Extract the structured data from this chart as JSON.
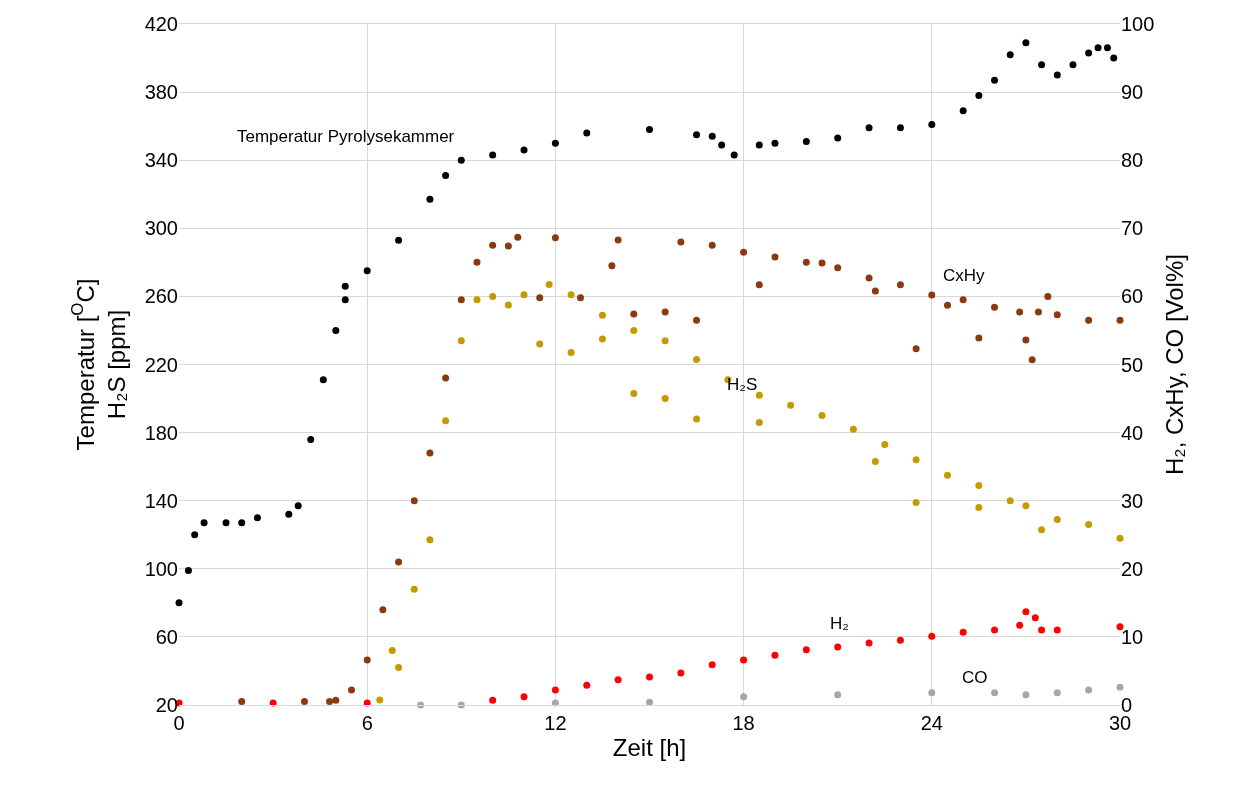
{
  "chart_data": {
    "type": "scatter",
    "xlabel": "Zeit [h]",
    "ylabel": "Temperatur [$^{O}$C]\nH₂S [ppm]",
    "y2label": "H₂, CxHy, CO [Vol%]",
    "xlim": [
      0,
      30
    ],
    "xticks": [
      0,
      6,
      12,
      18,
      24,
      30
    ],
    "ylim": [
      20,
      420
    ],
    "yticks": [
      20,
      60,
      100,
      140,
      180,
      220,
      260,
      300,
      340,
      380,
      420
    ],
    "y2lim": [
      0,
      100
    ],
    "y2ticks": [
      0,
      10,
      20,
      30,
      40,
      50,
      60,
      70,
      80,
      90,
      100
    ],
    "grid": true,
    "legend": false,
    "marker": "circle",
    "series": [
      {
        "name": "Temperatur Pyrolysekammer",
        "color": "#000000",
        "x": [
          0,
          0.3,
          0.5,
          0.8,
          1.5,
          2,
          2.5,
          3.5,
          3.8,
          4.2,
          4.6,
          5,
          5.3,
          5.3,
          6,
          7,
          8,
          8.5,
          9,
          10,
          11,
          12,
          13,
          15,
          16.5,
          17,
          17.3,
          17.7,
          18.5,
          19,
          20,
          21,
          22,
          23,
          24,
          25,
          25.5,
          26,
          26.5,
          27,
          27.5,
          28,
          28.5,
          29,
          29.3,
          29.6,
          29.8
        ],
        "values": [
          80,
          99,
          120,
          127,
          127,
          127,
          130,
          132,
          137,
          176,
          211,
          240,
          258,
          266,
          275,
          293,
          317,
          331,
          340,
          343,
          346,
          350,
          356,
          358,
          355,
          354,
          349,
          343,
          349,
          350,
          351,
          353,
          359,
          359,
          361,
          369,
          378,
          387,
          402,
          409,
          396,
          390,
          396,
          403,
          406,
          406,
          400
        ]
      },
      {
        "name": "H₂S",
        "color": "#c49a00",
        "x": [
          6.4,
          6.8,
          7,
          7.5,
          8,
          8.5,
          9,
          9.5,
          10,
          10.5,
          11,
          11.5,
          11.8,
          12.5,
          12.5,
          13.5,
          13.5,
          14.5,
          14.5,
          15.5,
          15.5,
          16.5,
          16.5,
          17.5,
          18.5,
          18.5,
          19.5,
          20.5,
          21.5,
          22.2,
          22.5,
          23.5,
          23.5,
          24.5,
          25.5,
          25.5,
          26.5,
          27,
          27.5,
          28,
          29,
          30
        ],
        "values": [
          23,
          52,
          42,
          88,
          117,
          187,
          234,
          258,
          260,
          255,
          261,
          232,
          267,
          261,
          227,
          249,
          235,
          240,
          203,
          234,
          200,
          223,
          188,
          211,
          202,
          186,
          196,
          190,
          182,
          163,
          173,
          164,
          139,
          155,
          149,
          136,
          140,
          137,
          123,
          129,
          126,
          118
        ]
      },
      {
        "name": "CxHy",
        "color": "#8b3a0f",
        "axis": "y2",
        "x": [
          2,
          4,
          4.8,
          5,
          5.5,
          6,
          6.5,
          7,
          7.5,
          8,
          8.5,
          9,
          9.5,
          10,
          10.5,
          10.8,
          11.5,
          12,
          12.8,
          13.8,
          14,
          14.5,
          15.5,
          16,
          16.5,
          17,
          18,
          18.5,
          19,
          20,
          20.5,
          21,
          22,
          22.2,
          23,
          23.5,
          24,
          24.5,
          25,
          25.5,
          26,
          26.8,
          27,
          27.2,
          27.4,
          27.7,
          28,
          29,
          30
        ],
        "values": [
          0.5,
          0.5,
          0.5,
          0.7,
          2.2,
          6.6,
          14,
          21,
          30,
          37,
          48,
          59.5,
          65,
          67.5,
          67.4,
          68.7,
          59.8,
          68.6,
          59.8,
          64.5,
          68.3,
          57.4,
          57.7,
          68,
          56.5,
          67.5,
          66.5,
          61.7,
          65.8,
          65,
          64.9,
          64.2,
          62.7,
          60.8,
          61.7,
          52.3,
          60.2,
          58.7,
          59.5,
          53.9,
          58.4,
          57.7,
          53.6,
          50.7,
          57.7,
          60,
          57.3,
          56.5,
          56.5
        ]
      },
      {
        "name": "H₂",
        "color": "#ff0000",
        "axis": "y2",
        "x": [
          0,
          3,
          6,
          10,
          11,
          12,
          13,
          14,
          15,
          16,
          17,
          18,
          19,
          20,
          21,
          22,
          23,
          24,
          25,
          26,
          26.8,
          27,
          27.3,
          27.5,
          28,
          30
        ],
        "values": [
          0.3,
          0.3,
          0.3,
          0.7,
          1.2,
          2.2,
          2.9,
          3.7,
          4.1,
          4.7,
          5.9,
          6.6,
          7.3,
          8.1,
          8.5,
          9.1,
          9.5,
          10.1,
          10.7,
          11,
          11.7,
          13.7,
          12.8,
          11,
          11,
          11.5
        ]
      },
      {
        "name": "CO",
        "color": "#a6a6a6",
        "axis": "y2",
        "x": [
          7.7,
          9,
          12,
          15,
          18,
          21,
          24,
          26,
          27,
          28,
          29,
          30
        ],
        "values": [
          0,
          0,
          0.3,
          0.4,
          1.2,
          1.5,
          1.8,
          1.8,
          1.5,
          1.8,
          2.2,
          2.6
        ]
      }
    ]
  }
}
